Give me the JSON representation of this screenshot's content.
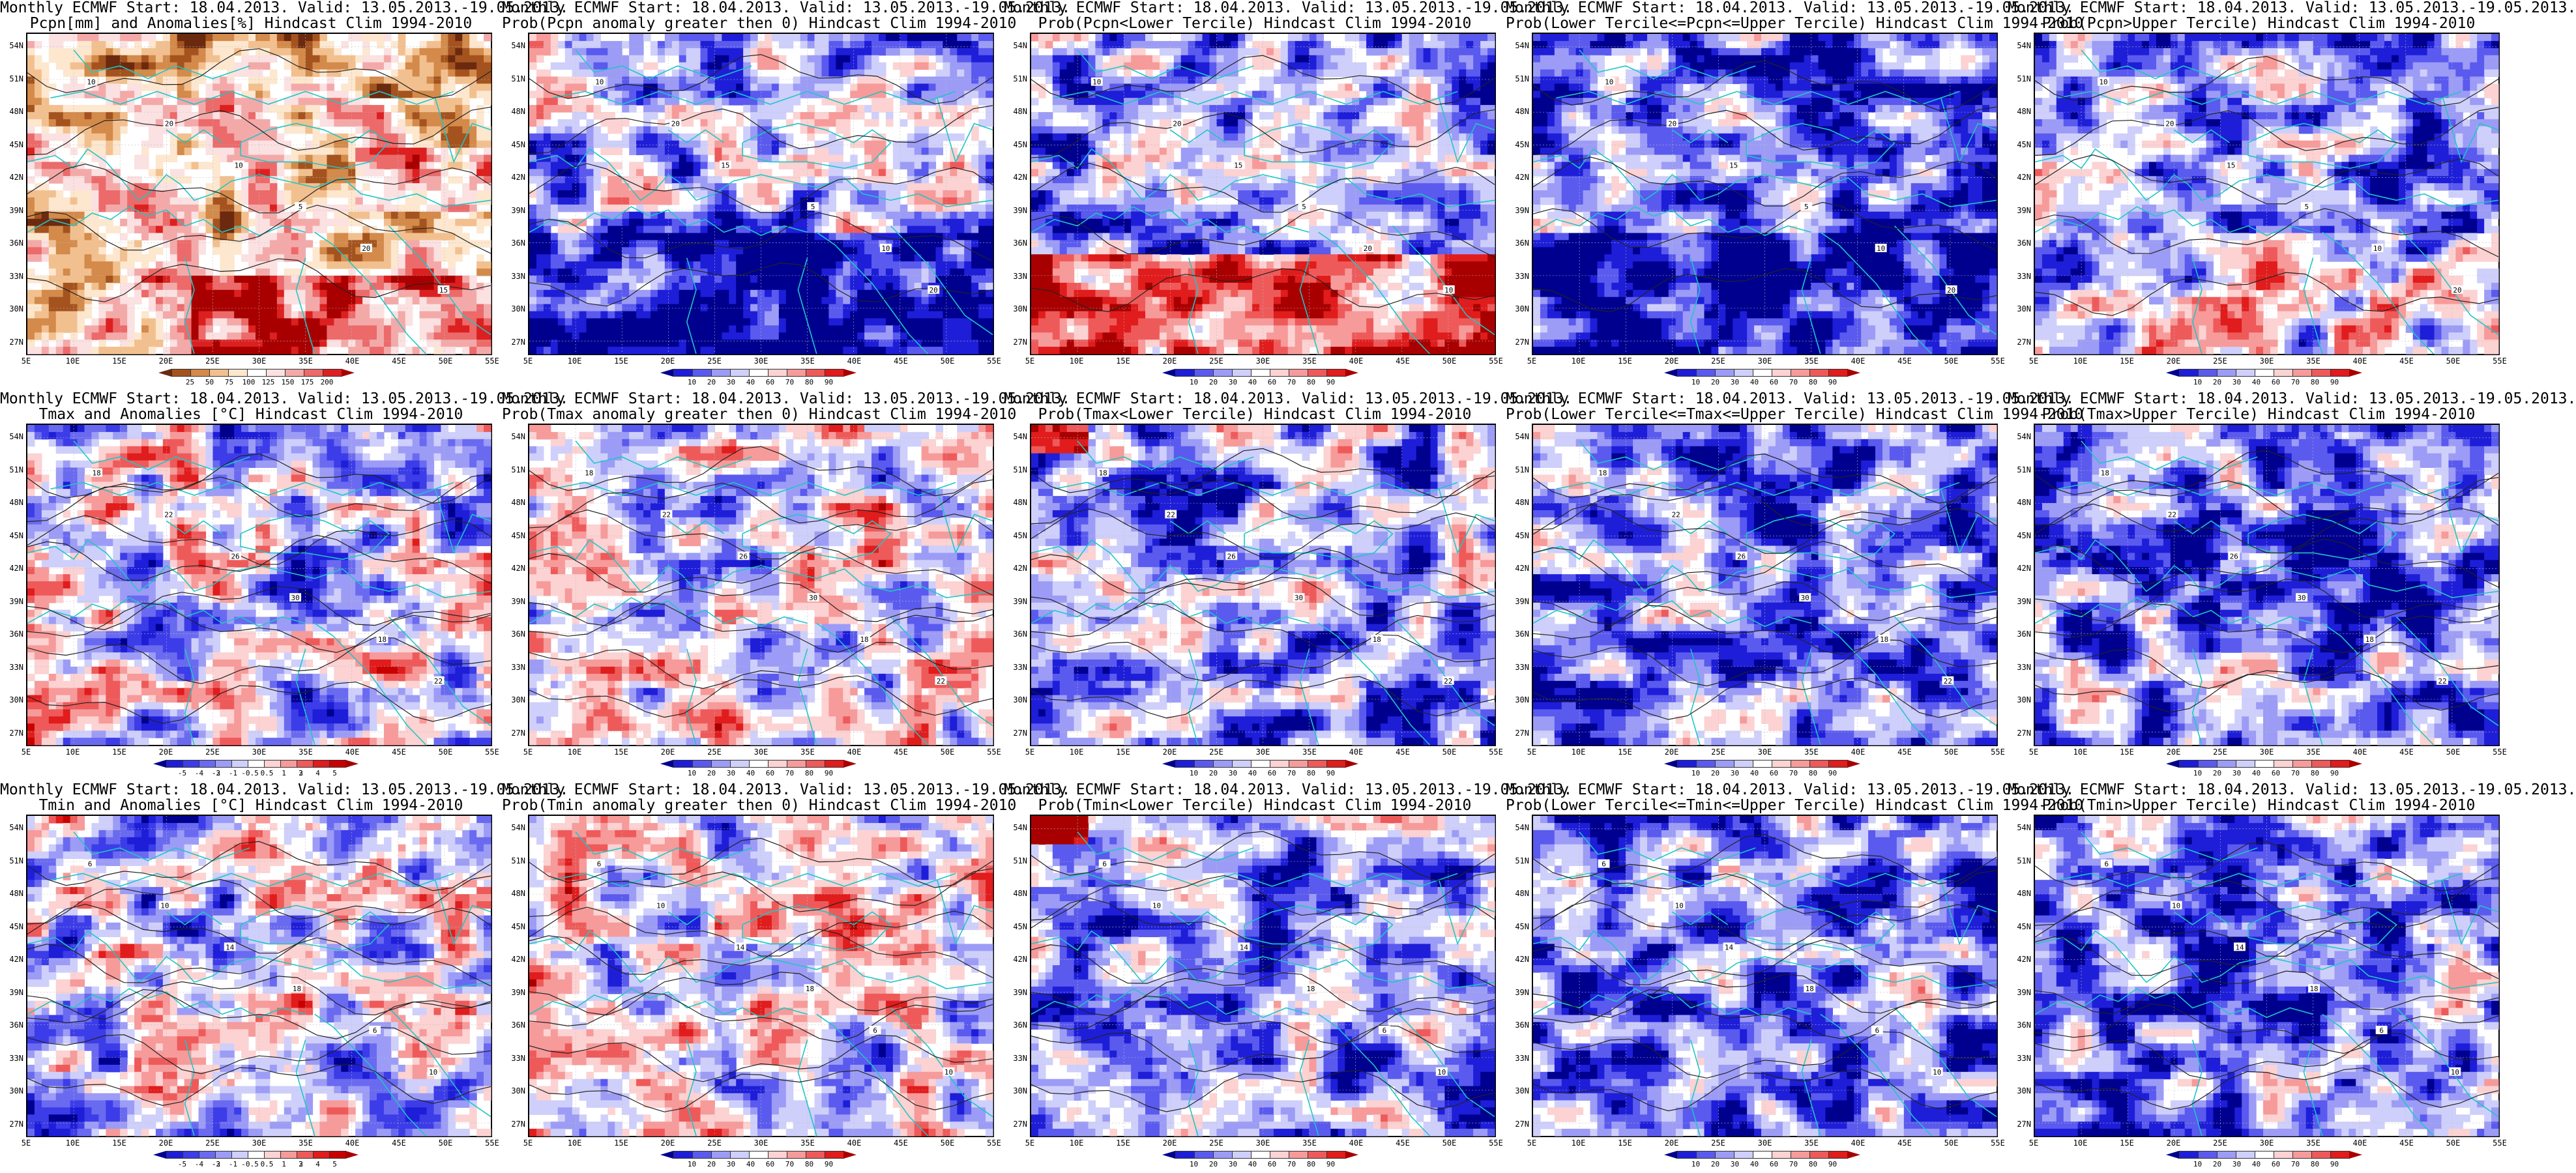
{
  "figure": {
    "panels": [
      {
        "title_line1": "Monthly ECMWF Start: 18.04.2013. Valid: 13.05.2013.-19.05.2013.",
        "title_line2": "Pcpn[mm] and Anomalies[%] Hindcast Clim 1994-2010",
        "variable": "Pcpn",
        "product": "anomaly",
        "colorbar_palette": "precip_anomaly",
        "colorbar_labels": [
          "25",
          "50",
          "75",
          "100",
          "125",
          "150",
          "175",
          "200"
        ],
        "contour_labels": [
          "10",
          "20",
          "10",
          "5",
          "20",
          "15"
        ]
      },
      {
        "title_line1": "Monthly ECMWF Start: 18.04.2013. Valid: 13.05.2013.-19.05.2013.",
        "title_line2": "Prob(Pcpn anomaly greater then 0) Hindcast Clim 1994-2010",
        "variable": "Pcpn",
        "product": "prob_greater_0",
        "colorbar_palette": "probability",
        "colorbar_labels": [
          "10",
          "20",
          "30",
          "40",
          "60",
          "70",
          "80",
          "90"
        ],
        "contour_labels": [
          "10",
          "20",
          "15",
          "5",
          "10",
          "20"
        ]
      },
      {
        "title_line1": "Monthly ECMWF Start: 18.04.2013. Valid: 13.05.2013.-19.05.2013.",
        "title_line2": "Prob(Pcpn<Lower Tercile) Hindcast Clim 1994-2010",
        "variable": "Pcpn",
        "product": "prob_lower",
        "colorbar_palette": "probability",
        "colorbar_labels": [
          "10",
          "20",
          "30",
          "40",
          "60",
          "70",
          "80",
          "90"
        ],
        "contour_labels": [
          "10",
          "20",
          "15",
          "5",
          "20",
          "10"
        ]
      },
      {
        "title_line1": "Monthly ECMWF Start: 18.04.2013. Valid: 13.05.2013.-19.05.2013.",
        "title_line2": "Prob(Lower Tercile<=Pcpn<=Upper Tercile) Hindcast Clim 1994-2010",
        "variable": "Pcpn",
        "product": "prob_middle",
        "colorbar_palette": "probability",
        "colorbar_labels": [
          "10",
          "20",
          "30",
          "40",
          "60",
          "70",
          "80",
          "90"
        ],
        "contour_labels": [
          "10",
          "20",
          "15",
          "5",
          "10",
          "20"
        ]
      },
      {
        "title_line1": "Monthly ECMWF Start: 18.04.2013. Valid: 13.05.2013.-19.05.2013.",
        "title_line2": "Prob(Pcpn>Upper Tercile) Hindcast Clim 1994-2010",
        "variable": "Pcpn",
        "product": "prob_upper",
        "colorbar_palette": "probability",
        "colorbar_labels": [
          "10",
          "20",
          "30",
          "40",
          "60",
          "70",
          "80",
          "90"
        ],
        "contour_labels": [
          "10",
          "20",
          "15",
          "5",
          "10",
          "20"
        ]
      },
      {
        "title_line1": "Monthly ECMWF Start: 18.04.2013. Valid: 13.05.2013.-19.05.2013.",
        "title_line2": "Tmax and Anomalies [°C] Hindcast Clim 1994-2010",
        "variable": "Tmax",
        "product": "anomaly",
        "colorbar_palette": "temp_anomaly",
        "colorbar_labels": [
          "-5",
          "-4",
          "-3",
          "-2",
          "-1",
          "-0.5",
          "0.5",
          "1",
          "2",
          "3",
          "4",
          "5"
        ],
        "contour_labels": [
          "18",
          "22",
          "26",
          "30",
          "18",
          "22"
        ]
      },
      {
        "title_line1": "Monthly ECMWF Start: 18.04.2013. Valid: 13.05.2013.-19.05.2013.",
        "title_line2": "Prob(Tmax anomaly greater then 0) Hindcast Clim 1994-2010",
        "variable": "Tmax",
        "product": "prob_greater_0",
        "colorbar_palette": "probability",
        "colorbar_labels": [
          "10",
          "20",
          "30",
          "40",
          "60",
          "70",
          "80",
          "90"
        ],
        "contour_labels": [
          "18",
          "22",
          "26",
          "30",
          "18",
          "22"
        ]
      },
      {
        "title_line1": "Monthly ECMWF Start: 18.04.2013. Valid: 13.05.2013.-19.05.2013.",
        "title_line2": "Prob(Tmax<Lower Tercile) Hindcast Clim 1994-2010",
        "variable": "Tmax",
        "product": "prob_lower",
        "colorbar_palette": "probability",
        "colorbar_labels": [
          "10",
          "20",
          "30",
          "40",
          "60",
          "70",
          "80",
          "90"
        ],
        "contour_labels": [
          "18",
          "22",
          "26",
          "30",
          "18",
          "22"
        ]
      },
      {
        "title_line1": "Monthly ECMWF Start: 18.04.2013. Valid: 13.05.2013.-19.05.2013.",
        "title_line2": "Prob(Lower Tercile<=Tmax<=Upper Tercile) Hindcast Clim 1994-2010",
        "variable": "Tmax",
        "product": "prob_middle",
        "colorbar_palette": "probability",
        "colorbar_labels": [
          "10",
          "20",
          "30",
          "40",
          "60",
          "70",
          "80",
          "90"
        ],
        "contour_labels": [
          "18",
          "22",
          "26",
          "30",
          "18",
          "22"
        ]
      },
      {
        "title_line1": "Monthly ECMWF Start: 18.04.2013. Valid: 13.05.2013.-19.05.2013.",
        "title_line2": "Prob(Tmax>Upper Tercile) Hindcast Clim 1994-2010",
        "variable": "Tmax",
        "product": "prob_upper",
        "colorbar_palette": "probability",
        "colorbar_labels": [
          "10",
          "20",
          "30",
          "40",
          "60",
          "70",
          "80",
          "90"
        ],
        "contour_labels": [
          "18",
          "22",
          "26",
          "30",
          "18",
          "22"
        ]
      },
      {
        "title_line1": "Monthly ECMWF Start: 18.04.2013. Valid: 13.05.2013.-19.05.2013.",
        "title_line2": "Tmin and Anomalies [°C] Hindcast Clim 1994-2010",
        "variable": "Tmin",
        "product": "anomaly",
        "colorbar_palette": "temp_anomaly",
        "colorbar_labels": [
          "-5",
          "-4",
          "-3",
          "-2",
          "-1",
          "-0.5",
          "0.5",
          "1",
          "2",
          "3",
          "4",
          "5"
        ],
        "contour_labels": [
          "6",
          "10",
          "14",
          "18",
          "6",
          "10"
        ]
      },
      {
        "title_line1": "Monthly ECMWF Start: 18.04.2013. Valid: 13.05.2013.-19.05.2013.",
        "title_line2": "Prob(Tmin anomaly greater then 0) Hindcast Clim 1994-2010",
        "variable": "Tmin",
        "product": "prob_greater_0",
        "colorbar_palette": "probability",
        "colorbar_labels": [
          "10",
          "20",
          "30",
          "40",
          "60",
          "70",
          "80",
          "90"
        ],
        "contour_labels": [
          "6",
          "10",
          "14",
          "18",
          "6",
          "10"
        ]
      },
      {
        "title_line1": "Monthly ECMWF Start: 18.04.2013. Valid: 13.05.2013.-19.05.2013.",
        "title_line2": "Prob(Tmin<Lower Tercile) Hindcast Clim 1994-2010",
        "variable": "Tmin",
        "product": "prob_lower",
        "colorbar_palette": "probability",
        "colorbar_labels": [
          "10",
          "20",
          "30",
          "40",
          "60",
          "70",
          "80",
          "90"
        ],
        "contour_labels": [
          "6",
          "10",
          "14",
          "18",
          "6",
          "10"
        ]
      },
      {
        "title_line1": "Monthly ECMWF Start: 18.04.2013. Valid: 13.05.2013.-19.05.2013.",
        "title_line2": "Prob(Lower Tercile<=Tmin<=Upper Tercile) Hindcast Clim 1994-2010",
        "variable": "Tmin",
        "product": "prob_middle",
        "colorbar_palette": "probability",
        "colorbar_labels": [
          "10",
          "20",
          "30",
          "40",
          "60",
          "70",
          "80",
          "90"
        ],
        "contour_labels": [
          "6",
          "10",
          "14",
          "18",
          "6",
          "10"
        ]
      },
      {
        "title_line1": "Monthly ECMWF Start: 18.04.2013. Valid: 13.05.2013.-19.05.2013.",
        "title_line2": "Prob(Tmin>Upper Tercile) Hindcast Clim 1994-2010",
        "variable": "Tmin",
        "product": "prob_upper",
        "colorbar_palette": "probability",
        "colorbar_labels": [
          "10",
          "20",
          "30",
          "40",
          "60",
          "70",
          "80",
          "90"
        ],
        "contour_labels": [
          "6",
          "10",
          "14",
          "18",
          "6",
          "10"
        ]
      }
    ],
    "map_extent": {
      "lon_labels": [
        "5E",
        "10E",
        "15E",
        "20E",
        "25E",
        "30E",
        "35E",
        "40E",
        "45E",
        "50E",
        "55E"
      ],
      "lat_labels": [
        "54N",
        "51N",
        "48N",
        "45N",
        "42N",
        "39N",
        "36N",
        "33N",
        "30N",
        "27N"
      ]
    },
    "palettes": {
      "precip_anomaly": [
        "#6b2a0f",
        "#a4531f",
        "#d38a4a",
        "#f2c08f",
        "#fde7cf",
        "#ffffff",
        "#fbe1e1",
        "#f4a9a9",
        "#ec6a6a",
        "#dc2020",
        "#a80000"
      ],
      "probability": [
        "#00008f",
        "#1e1ed8",
        "#5a5aef",
        "#9c9cf6",
        "#cfcffb",
        "#ffffff",
        "#fcd2d2",
        "#f79a9a",
        "#ee5a5a",
        "#e01c1c",
        "#a80000"
      ],
      "temp_anomaly": [
        "#00008f",
        "#1e1ed8",
        "#3c3ce8",
        "#6a6af0",
        "#9c9cf6",
        "#cfcffb",
        "#ffffff",
        "#fcd2d2",
        "#f79a9a",
        "#ee5a5a",
        "#e01c1c",
        "#c80000",
        "#a80000"
      ]
    },
    "colors": {
      "coastline": "#1fc6c6",
      "contour": "#222222",
      "grid": "#bdbdbd",
      "land_base": "#ffffff"
    }
  }
}
